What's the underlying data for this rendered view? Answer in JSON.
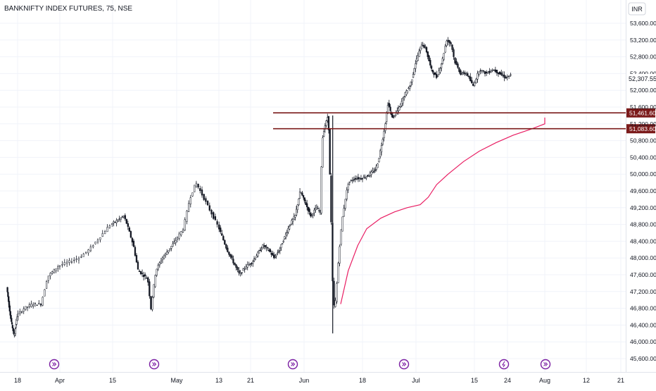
{
  "chart_data": {
    "type": "candlestick",
    "title": "BANKNIFTY INDEX FUTURES, 75, NSE",
    "currency": "INR",
    "ylim": [
      45400,
      53800
    ],
    "y_ticks": [
      "53,600.00",
      "53,200.00",
      "52,800.00",
      "52,400.00",
      "52,000.00",
      "51,600.00",
      "51,200.00",
      "50,800.00",
      "50,400.00",
      "50,000.00",
      "49,600.00",
      "49,200.00",
      "48,800.00",
      "48,400.00",
      "48,000.00",
      "47,600.00",
      "47,200.00",
      "46,800.00",
      "46,400.00",
      "46,000.00",
      "45,600.00"
    ],
    "x_ticks": [
      "18",
      "Apr",
      "15",
      "May",
      "13",
      "21",
      "Jun",
      "18",
      "Jul",
      "15",
      "24",
      "Aug",
      "12",
      "21"
    ],
    "last_price": "52,307.55",
    "price_levels": [
      {
        "label": "51,461.60",
        "value": 51461.6,
        "color": "#7b1a1a"
      },
      {
        "label": "51,083.60",
        "value": 51083.6,
        "color": "#7b1a1a"
      }
    ],
    "vwap_series": {
      "color": "#e91e63",
      "points": [
        [
          0.16,
          46900
        ],
        [
          0.4,
          47700
        ],
        [
          0.7,
          48300
        ],
        [
          1.0,
          48700
        ],
        [
          1.5,
          48950
        ],
        [
          2.0,
          49100
        ],
        [
          2.5,
          49200
        ],
        [
          3.0,
          49270
        ],
        [
          3.3,
          49450
        ],
        [
          3.6,
          49750
        ],
        [
          4.0,
          50000
        ],
        [
          4.5,
          50300
        ],
        [
          5.0,
          50550
        ],
        [
          5.5,
          50750
        ],
        [
          6.0,
          50930
        ],
        [
          6.5,
          51080
        ],
        [
          7.0,
          51200
        ],
        [
          7.5,
          51300
        ],
        [
          7.8,
          51350
        ]
      ]
    },
    "price_series": {
      "points": [
        [
          -4.8,
          47300
        ],
        [
          -4.6,
          46800
        ],
        [
          -4.4,
          46400
        ],
        [
          -4.2,
          46150
        ],
        [
          -4.0,
          46600
        ],
        [
          -3.8,
          46800
        ],
        [
          -3.6,
          46900
        ],
        [
          -3.4,
          46900
        ],
        [
          -3.25,
          47550
        ],
        [
          -3.0,
          47800
        ],
        [
          -2.8,
          47900
        ],
        [
          -2.6,
          48000
        ],
        [
          -2.4,
          48200
        ],
        [
          -2.2,
          48500
        ],
        [
          -2.0,
          48800
        ],
        [
          -1.8,
          48900
        ],
        [
          -1.6,
          49000
        ],
        [
          -1.5,
          48800
        ],
        [
          -1.3,
          48300
        ],
        [
          -1.15,
          47700
        ],
        [
          -1.0,
          47600
        ],
        [
          -0.85,
          47500
        ],
        [
          -0.75,
          46800
        ],
        [
          -0.6,
          47700
        ],
        [
          -0.4,
          48000
        ],
        [
          -0.2,
          48200
        ],
        [
          0.0,
          48400
        ],
        [
          0.2,
          48700
        ],
        [
          0.35,
          49400
        ],
        [
          0.5,
          49800
        ],
        [
          0.7,
          49400
        ],
        [
          0.9,
          49000
        ],
        [
          1.1,
          48600
        ],
        [
          1.3,
          48200
        ],
        [
          1.5,
          47900
        ],
        [
          1.7,
          47600
        ],
        [
          1.9,
          47800
        ],
        [
          2.1,
          47900
        ],
        [
          2.3,
          48100
        ],
        [
          2.5,
          48300
        ],
        [
          2.7,
          48200
        ],
        [
          2.9,
          48000
        ],
        [
          3.1,
          48200
        ],
        [
          3.3,
          48500
        ],
        [
          3.5,
          48800
        ],
        [
          3.7,
          49000
        ],
        [
          3.9,
          49600
        ],
        [
          4.1,
          49300
        ],
        [
          4.3,
          49000
        ],
        [
          4.5,
          49200
        ],
        [
          4.65,
          49100
        ],
        [
          4.72,
          50800
        ],
        [
          4.8,
          51100
        ],
        [
          4.9,
          51300
        ],
        [
          4.95,
          51450
        ],
        [
          5.05,
          49000
        ],
        [
          5.12,
          46800
        ],
        [
          5.2,
          47000
        ],
        [
          5.3,
          48100
        ],
        [
          5.4,
          48900
        ],
        [
          5.5,
          49400
        ],
        [
          5.6,
          49800
        ],
        [
          5.8,
          49900
        ],
        [
          6.0,
          49900
        ],
        [
          6.2,
          49950
        ],
        [
          6.4,
          50050
        ],
        [
          6.5,
          50100
        ],
        [
          6.6,
          50300
        ],
        [
          6.75,
          50800
        ],
        [
          6.85,
          51200
        ],
        [
          6.95,
          51700
        ],
        [
          7.1,
          51350
        ],
        [
          7.25,
          51450
        ],
        [
          7.4,
          51600
        ],
        [
          7.6,
          51900
        ],
        [
          7.8,
          52100
        ],
        [
          7.9,
          52300
        ],
        [
          8.0,
          52600
        ],
        [
          8.1,
          52800
        ],
        [
          8.25,
          53100
        ],
        [
          8.4,
          53000
        ],
        [
          8.6,
          52500
        ],
        [
          8.8,
          52300
        ],
        [
          9.0,
          52700
        ],
        [
          9.15,
          53200
        ],
        [
          9.3,
          53100
        ],
        [
          9.4,
          52700
        ],
        [
          9.6,
          52400
        ],
        [
          9.8,
          52400
        ],
        [
          10.0,
          52100
        ],
        [
          10.2,
          52500
        ],
        [
          10.4,
          52400
        ],
        [
          10.6,
          52500
        ],
        [
          10.8,
          52400
        ],
        [
          11.0,
          52300
        ],
        [
          11.1,
          52350
        ]
      ]
    }
  }
}
